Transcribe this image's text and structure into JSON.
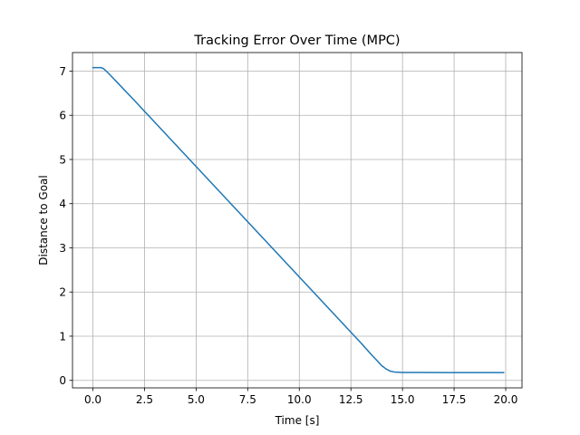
{
  "chart_data": {
    "type": "line",
    "title": "Tracking Error Over Time (MPC)",
    "xlabel": "Time [s]",
    "ylabel": "Distance to Goal",
    "xlim": [
      -0.99,
      20.79
    ],
    "ylim": [
      -0.17,
      7.42
    ],
    "xticks": [
      0.0,
      2.5,
      5.0,
      7.5,
      10.0,
      12.5,
      15.0,
      17.5,
      20.0
    ],
    "xtick_labels": [
      "0.0",
      "2.5",
      "5.0",
      "7.5",
      "10.0",
      "12.5",
      "15.0",
      "17.5",
      "20.0"
    ],
    "yticks": [
      0,
      1,
      2,
      3,
      4,
      5,
      6,
      7
    ],
    "ytick_labels": [
      "0",
      "1",
      "2",
      "3",
      "4",
      "5",
      "6",
      "7"
    ],
    "grid": true,
    "colors": {
      "line": "#1f77b4",
      "grid": "#b0b0b0"
    },
    "series": [
      {
        "x": [
          0.0,
          0.2,
          0.4,
          0.5,
          0.6,
          0.8,
          1.0,
          2.0,
          3.0,
          4.0,
          5.0,
          6.0,
          7.0,
          8.0,
          9.0,
          10.0,
          11.0,
          12.0,
          13.0,
          13.5,
          13.8,
          14.0,
          14.2,
          14.4,
          14.6,
          14.8,
          15.0,
          15.5,
          16.0,
          17.0,
          18.0,
          19.0,
          19.9
        ],
        "y": [
          7.08,
          7.08,
          7.08,
          7.06,
          7.02,
          6.93,
          6.83,
          6.34,
          5.84,
          5.34,
          4.84,
          4.34,
          3.84,
          3.34,
          2.84,
          2.34,
          1.84,
          1.34,
          0.84,
          0.58,
          0.43,
          0.33,
          0.26,
          0.21,
          0.19,
          0.185,
          0.18,
          0.18,
          0.18,
          0.175,
          0.175,
          0.175,
          0.175
        ]
      }
    ]
  }
}
